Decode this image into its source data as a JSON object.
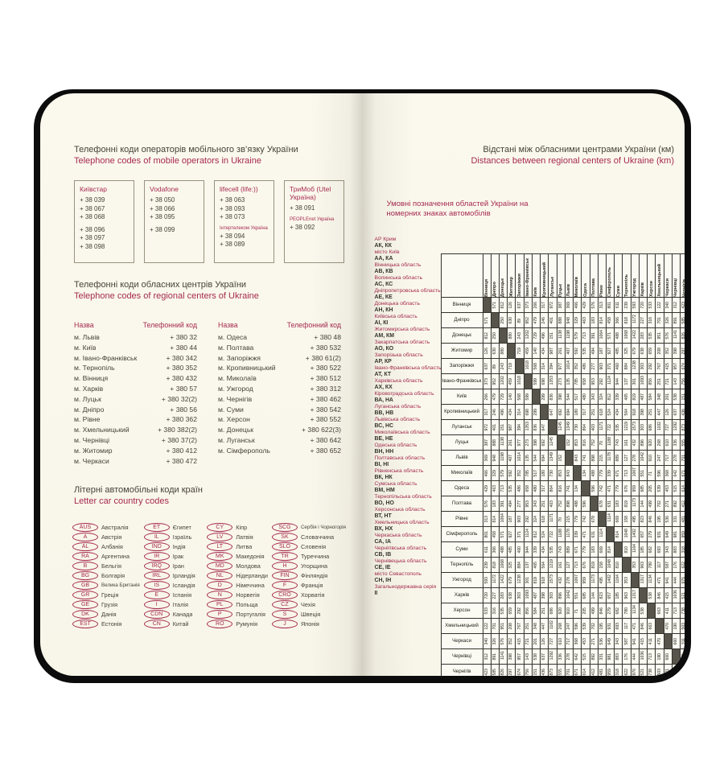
{
  "page_left": {
    "section_mobile": {
      "title_uk": "Телефонні коди операторів мобільного зв’язку України",
      "title_en": "Telephone codes of mobile operators in Ukraine",
      "operators": [
        {
          "name": "Київстар",
          "sections": [
            {
              "codes": [
                "+ 38 039",
                "+ 38 067",
                "+ 38 068"
              ]
            },
            {
              "codes": [
                "+ 38 096",
                "+ 38 097",
                "+ 38 098"
              ]
            }
          ]
        },
        {
          "name": "Vodafone",
          "sections": [
            {
              "codes": [
                "+ 38 050",
                "+ 38 066",
                "+ 38 095"
              ]
            },
            {
              "codes": [
                "+ 38 099"
              ]
            }
          ]
        },
        {
          "name": "lifecell (life:))",
          "sections": [
            {
              "codes": [
                "+ 38 063",
                "+ 38 093",
                "+ 38 073"
              ]
            },
            {
              "heading": "Інтертелеком Україна",
              "codes": [
                "+ 38 094",
                "+ 38 089"
              ]
            }
          ]
        },
        {
          "name": "ТриМоб (Utel Україна)",
          "sections": [
            {
              "codes": [
                "+ 38 091"
              ]
            },
            {
              "heading": "PEOPLEnet Україна",
              "codes": [
                "+ 38 092"
              ]
            }
          ]
        }
      ]
    },
    "section_regional": {
      "title_uk": "Телефонні коди обласних центрів України",
      "title_en": "Telephone codes of regional centers of Ukraine",
      "col_header_name": "Назва",
      "col_header_code": "Телефонний код",
      "left_rows": [
        [
          "м. Львів",
          "+ 380 32"
        ],
        [
          "м. Київ",
          "+ 380 44"
        ],
        [
          "м. Івано-Франківськ",
          "+ 380 342"
        ],
        [
          "м. Тернопіль",
          "+ 380 352"
        ],
        [
          "м. Вінниця",
          "+ 380 432"
        ],
        [
          "м. Харків",
          "+ 380 57"
        ],
        [
          "м. Луцьк",
          "+ 380 32(2)"
        ],
        [
          "м. Дніпро",
          "+ 380 56"
        ],
        [
          "м. Рівне",
          "+ 380 362"
        ],
        [
          "м. Хмельницький",
          "+ 380 382(2)"
        ],
        [
          "м. Чернівці",
          "+ 380 37(2)"
        ],
        [
          "м. Житомир",
          "+ 380 412"
        ],
        [
          "м. Черкаси",
          "+ 380 472"
        ]
      ],
      "right_rows": [
        [
          "м. Одеса",
          "+ 380 48"
        ],
        [
          "м. Полтава",
          "+ 380 532"
        ],
        [
          "м. Запоріжжя",
          "+ 380 61(2)"
        ],
        [
          "м. Кропивницький",
          "+ 380 522"
        ],
        [
          "м. Миколаїв",
          "+ 380 512"
        ],
        [
          "м. Ужгород",
          "+ 380 312"
        ],
        [
          "м. Чернігів",
          "+ 380 462"
        ],
        [
          "м. Суми",
          "+ 380 542"
        ],
        [
          "м. Херсон",
          "+ 380 552"
        ],
        [
          "м. Донецьк",
          "+ 380 622(3)"
        ],
        [
          "м. Луганськ",
          "+ 380 642"
        ],
        [
          "м. Сімферополь",
          "+ 380 652"
        ]
      ]
    },
    "section_car": {
      "title_uk": "Літерні автомобільні коди країн",
      "title_en": "Letter car country codes",
      "columns": [
        [
          [
            "AUS",
            "Австралія"
          ],
          [
            "A",
            "Австрія"
          ],
          [
            "AL",
            "Албанія"
          ],
          [
            "RA",
            "Аргентина"
          ],
          [
            "B",
            "Бельгія"
          ],
          [
            "BG",
            "Болгарія"
          ],
          [
            "GB",
            "Велика Британія"
          ],
          [
            "GR",
            "Греція"
          ],
          [
            "GE",
            "Грузія"
          ],
          [
            "DK",
            "Данія"
          ],
          [
            "EST",
            "Естонія"
          ]
        ],
        [
          [
            "ET",
            "Єгипет"
          ],
          [
            "IL",
            "Ізраїль"
          ],
          [
            "IND",
            "Індія"
          ],
          [
            "IR",
            "Ірак"
          ],
          [
            "IRQ",
            "Іран"
          ],
          [
            "IRL",
            "Ірландія"
          ],
          [
            "IS",
            "Ісландія"
          ],
          [
            "E",
            "Іспанія"
          ],
          [
            "I",
            "Італія"
          ],
          [
            "CDN",
            "Канада"
          ],
          [
            "CN",
            "Китай"
          ]
        ],
        [
          [
            "CY",
            "Кіпр"
          ],
          [
            "LV",
            "Латвія"
          ],
          [
            "LT",
            "Литва"
          ],
          [
            "MK",
            "Македонія"
          ],
          [
            "MD",
            "Молдова"
          ],
          [
            "NL",
            "Нідерланди"
          ],
          [
            "D",
            "Німеччина"
          ],
          [
            "N",
            "Норвегія"
          ],
          [
            "PL",
            "Польща"
          ],
          [
            "P",
            "Португалія"
          ],
          [
            "RO",
            "Румунія"
          ]
        ],
        [
          [
            "SCG",
            "Сербія і Чорногорія"
          ],
          [
            "SK",
            "Словаччина"
          ],
          [
            "SLO",
            "Словенія"
          ],
          [
            "TR",
            "Туреччина"
          ],
          [
            "H",
            "Угорщина"
          ],
          [
            "FIN",
            "Фінляндія"
          ],
          [
            "F",
            "Франція"
          ],
          [
            "CRO",
            "Хорватія"
          ],
          [
            "CZ",
            "Чехія"
          ],
          [
            "S",
            "Швеція"
          ],
          [
            "J",
            "Японія"
          ]
        ]
      ]
    }
  },
  "page_right": {
    "title_uk": "Відстані між обласними центрами України (км)",
    "title_en": "Distances between regional centers of Ukraine (km)",
    "legend_title": "Умовні позначення областей України на номерних знаках автомобілів",
    "legend": [
      {
        "region": "АР Крим",
        "codes": "АК, КК"
      },
      {
        "region": "місто Київ",
        "codes": "АА, КА"
      },
      {
        "region": "Вінницька область",
        "codes": "АВ, КВ"
      },
      {
        "region": "Волинська область",
        "codes": "АС, КС"
      },
      {
        "region": "Дніпропетровська область",
        "codes": "АЕ, КЕ"
      },
      {
        "region": "Донецька область",
        "codes": "АН, КН"
      },
      {
        "region": "Київська область",
        "codes": "АІ, КІ"
      },
      {
        "region": "Житомирська область",
        "codes": "АМ, КМ"
      },
      {
        "region": "Закарпатська область",
        "codes": "АО, КО"
      },
      {
        "region": "Запорізька область",
        "codes": "АР, КР"
      },
      {
        "region": "Івано-Франківська область",
        "codes": "АТ, КТ"
      },
      {
        "region": "Харківська область",
        "codes": "АХ, КХ"
      },
      {
        "region": "Кіровоградська область",
        "codes": "ВА, НА"
      },
      {
        "region": "Луганська область",
        "codes": "ВВ, НВ"
      },
      {
        "region": "Львівська область",
        "codes": "ВС, НС"
      },
      {
        "region": "Миколаївська область",
        "codes": "ВЕ, НЕ"
      },
      {
        "region": "Одеська область",
        "codes": "ВН, НН"
      },
      {
        "region": "Полтавська область",
        "codes": "ВІ, НІ"
      },
      {
        "region": "Рівненська область",
        "codes": "ВК, НК"
      },
      {
        "region": "Сумська область",
        "codes": "ВМ, НМ"
      },
      {
        "region": "Тернопільська область",
        "codes": "ВО, НО"
      },
      {
        "region": "Херсонська область",
        "codes": "ВТ, НТ"
      },
      {
        "region": "Хмельницька область",
        "codes": "ВХ, НХ"
      },
      {
        "region": "Черкаська область",
        "codes": "СА, ІА"
      },
      {
        "region": "Чернігівська область",
        "codes": "СВ, ІВ"
      },
      {
        "region": "Чернівецька область",
        "codes": "СЕ, ІЕ"
      },
      {
        "region": "місто Севастополь",
        "codes": "СН, ІН"
      },
      {
        "region": "Загальнодержавна серія",
        "codes": "ІІ"
      }
    ],
    "chart_data": {
      "type": "table",
      "title": "Відстані між обласними центрами України (км)",
      "cities": [
        "Вінниця",
        "Дніпро",
        "Донецьк",
        "Житомир",
        "Запоріжжя",
        "Івано-Франківськ",
        "Київ",
        "Кропивницький",
        "Луганськ",
        "Луцьк",
        "Львів",
        "Миколаїв",
        "Одеса",
        "Полтава",
        "Рівне",
        "Сімферополь",
        "Суми",
        "Тернопіль",
        "Ужгород",
        "Харків",
        "Херсон",
        "Хмельницький",
        "Черкаси",
        "Чернівці",
        "Чернігів"
      ],
      "matrix_upper": [
        [
          571,
          812,
          126,
          637,
          373,
          266,
          317,
          972,
          387,
          369,
          466,
          429,
          576,
          313,
          801,
          611,
          239,
          593,
          720,
          533,
          122,
          340,
          312,
          423
        ],
        [
          250,
          630,
          89,
          952,
          479,
          246,
          401,
          888,
          948,
          329,
          463,
          183,
          814,
          458,
          366,
          818,
          1172,
          227,
          316,
          701,
          326,
          891,
          585
        ],
        [
          880,
          243,
          1202,
          729,
          496,
          151,
          1138,
          1198,
          579,
          713,
          391,
          1064,
          571,
          488,
          1068,
          1422,
          283,
          535,
          951,
          576,
          1141,
          826
        ],
        [
          719,
          459,
          140,
          434,
          987,
          261,
          407,
          592,
          535,
          494,
          187,
          927,
          485,
          325,
          679,
          638,
          659,
          208,
          352,
          398,
          297
        ],
        [
          1018,
          568,
          314,
          394,
          977,
          1014,
          352,
          486,
          277,
          903,
          371,
          460,
          884,
          1238,
          303,
          292,
          767,
          415,
          957,
          674
        ],
        [
          599,
          698,
          1353,
          273,
          135,
          785,
          658,
          953,
          292,
          1124,
          944,
          137,
          301,
          1093,
          856,
          251,
          721,
          143,
          756
        ],
        [
          299,
          836,
          398,
          544,
          517,
          480,
          343,
          324,
          812,
          339,
          465,
          819,
          487,
          584,
          348,
          201,
          538,
          151
        ],
        [
          647,
          692,
          694,
          180,
          317,
          251,
          618,
          524,
          434,
          564,
          918,
          398,
          251,
          447,
          126,
          637,
          436
        ],
        [
          1245,
          1349,
          730,
          864,
          403,
          1171,
          722,
          535,
          1219,
          1573,
          303,
          686,
          1102,
          727,
          1292,
          873
        ],
        [
          152,
          853,
          816,
          752,
          70,
          1188,
          743,
          161,
          432,
          896,
          920,
          268,
          610,
          336,
          555
        ],
        [
          843,
          741,
          898,
          215,
          1178,
          889,
          127,
          278,
          1042,
          910,
          247,
          717,
          278,
          701
        ],
        [
          134,
          488,
          779,
          339,
          671,
          713,
          1067,
          551,
          71,
          596,
          368,
          642,
          671
        ],
        [
          596,
          742,
          471,
          779,
          676,
          959,
          685,
          205,
          539,
          453,
          515,
          614
        ],
        [
          678,
          631,
          183,
          819,
          1173,
          144,
          499,
          702,
          271,
          892,
          412
        ],
        [
          1114,
          669,
          158,
          495,
          823,
          846,
          195,
          536,
          331,
          481
        ],
        [
          814,
          1048,
          1402,
          657,
          279,
          931,
          649,
          981,
          959
        ],
        [
          810,
          1164,
          185,
          682,
          693,
          343,
          883,
          318
        ],
        [
          353,
          963,
          780,
          117,
          587,
          176,
          622
        ],
        [
          1317,
          1134,
          471,
          941,
          444,
          976
        ],
        [
          538,
          846,
          415,
          1036,
          521
        ],
        [
          663,
          411,
          713,
          738
        ],
        [
          470,
          190,
          503
        ],
        [
          660,
          311
        ],
        [
          695
        ]
      ]
    }
  },
  "colors": {
    "accent_red": "#a62a50",
    "ink": "#46413a",
    "page": "#faf8ec",
    "cover": "#0c0c0c",
    "diagonal": "#57544c"
  }
}
